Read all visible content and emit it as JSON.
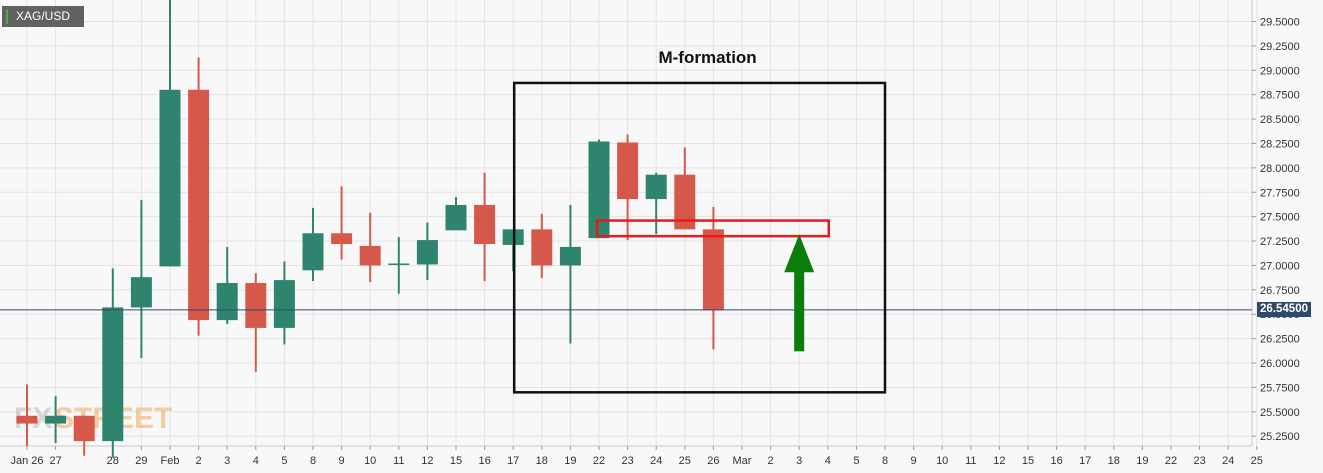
{
  "symbol": "XAG/USD",
  "annotation": {
    "title": "M-formation"
  },
  "watermark": {
    "left": "FX",
    "right": "STREET"
  },
  "colors": {
    "up": "#2f8470",
    "down": "#d6584a",
    "arrow": "#0a7d0a",
    "zone": "#e81a1a",
    "box": "#111111",
    "current_line": "#2e4a6b",
    "grid": "#e3e3e6",
    "background": "#f8f8f9"
  },
  "chart_data": {
    "type": "candlestick",
    "y_axis": {
      "ticks": [
        "25.2500",
        "25.5000",
        "25.7500",
        "26.0000",
        "26.2500",
        "26.5000",
        "26.7500",
        "27.0000",
        "27.2500",
        "27.5000",
        "27.7500",
        "28.0000",
        "28.2500",
        "28.5000",
        "28.7500",
        "29.0000",
        "29.2500",
        "29.5000"
      ],
      "range": [
        25.15,
        29.72
      ],
      "side": "right"
    },
    "x_axis": {
      "labels": [
        "Jan 26",
        "27",
        "28",
        "29",
        "Feb",
        "2",
        "3",
        "4",
        "5",
        "8",
        "9",
        "10",
        "11",
        "12",
        "15",
        "16",
        "17",
        "18",
        "19",
        "22",
        "23",
        "24",
        "25",
        "26",
        "Mar",
        "2",
        "3",
        "4",
        "5",
        "8",
        "9",
        "10",
        "11",
        "12",
        "15",
        "16",
        "17",
        "18",
        "19",
        "22",
        "23",
        "24",
        "25"
      ]
    },
    "candles": [
      {
        "date": "Jan 26",
        "open": 25.46,
        "high": 25.78,
        "low": 25.15,
        "close": 25.38
      },
      {
        "date": "27",
        "open": 25.38,
        "high": 25.66,
        "low": 25.18,
        "close": 25.46
      },
      {
        "date": "27.5",
        "open": 25.46,
        "high": 25.46,
        "low": 25.05,
        "close": 25.2
      },
      {
        "date": "28",
        "open": 25.2,
        "high": 26.97,
        "low": 25.03,
        "close": 26.57
      },
      {
        "date": "29",
        "open": 26.57,
        "high": 27.67,
        "low": 26.05,
        "close": 26.88
      },
      {
        "date": "Feb",
        "open": 26.99,
        "high": 29.75,
        "low": 26.99,
        "close": 28.8
      },
      {
        "date": "2",
        "open": 28.8,
        "high": 29.13,
        "low": 26.28,
        "close": 26.44
      },
      {
        "date": "3",
        "open": 26.44,
        "high": 27.19,
        "low": 26.4,
        "close": 26.82
      },
      {
        "date": "4",
        "open": 26.82,
        "high": 26.92,
        "low": 25.91,
        "close": 26.36
      },
      {
        "date": "5",
        "open": 26.36,
        "high": 27.04,
        "low": 26.19,
        "close": 26.85
      },
      {
        "date": "8",
        "open": 26.95,
        "high": 27.59,
        "low": 26.84,
        "close": 27.33
      },
      {
        "date": "9",
        "open": 27.33,
        "high": 27.81,
        "low": 27.06,
        "close": 27.22
      },
      {
        "date": "10",
        "open": 27.2,
        "high": 27.54,
        "low": 26.83,
        "close": 27.0
      },
      {
        "date": "11",
        "open": 27.01,
        "high": 27.29,
        "low": 26.71,
        "close": 27.02
      },
      {
        "date": "12",
        "open": 27.01,
        "high": 27.44,
        "low": 26.85,
        "close": 27.26
      },
      {
        "date": "15",
        "open": 27.36,
        "high": 27.7,
        "low": 27.36,
        "close": 27.62
      },
      {
        "date": "16",
        "open": 27.62,
        "high": 27.95,
        "low": 26.84,
        "close": 27.22
      },
      {
        "date": "17",
        "open": 27.21,
        "high": 27.37,
        "low": 26.94,
        "close": 27.37
      },
      {
        "date": "18",
        "open": 27.37,
        "high": 27.53,
        "low": 26.87,
        "close": 27.0
      },
      {
        "date": "19",
        "open": 27.0,
        "high": 27.62,
        "low": 26.2,
        "close": 27.19
      },
      {
        "date": "22",
        "open": 27.28,
        "high": 28.29,
        "low": 27.28,
        "close": 28.27
      },
      {
        "date": "23",
        "open": 28.26,
        "high": 28.34,
        "low": 27.26,
        "close": 27.68
      },
      {
        "date": "24",
        "open": 27.68,
        "high": 27.95,
        "low": 27.32,
        "close": 27.93
      },
      {
        "date": "25",
        "open": 27.93,
        "high": 28.21,
        "low": 27.37,
        "close": 27.37
      },
      {
        "date": "26",
        "open": 27.37,
        "high": 27.6,
        "low": 26.14,
        "close": 26.54
      }
    ],
    "current_price": {
      "value": 26.545,
      "label": "26.54500"
    },
    "annotations": {
      "m_formation_box": {
        "x_from": "17",
        "x_to": "8",
        "y_from": 25.7,
        "y_to": 28.87
      },
      "neckline_zone": {
        "x_from": "22",
        "x_to": "4",
        "y_from": 27.3,
        "y_to": 27.46
      },
      "arrow": {
        "x": "3",
        "y_from": 26.12,
        "y_to": 27.32,
        "direction": "up"
      }
    },
    "grid": true
  }
}
